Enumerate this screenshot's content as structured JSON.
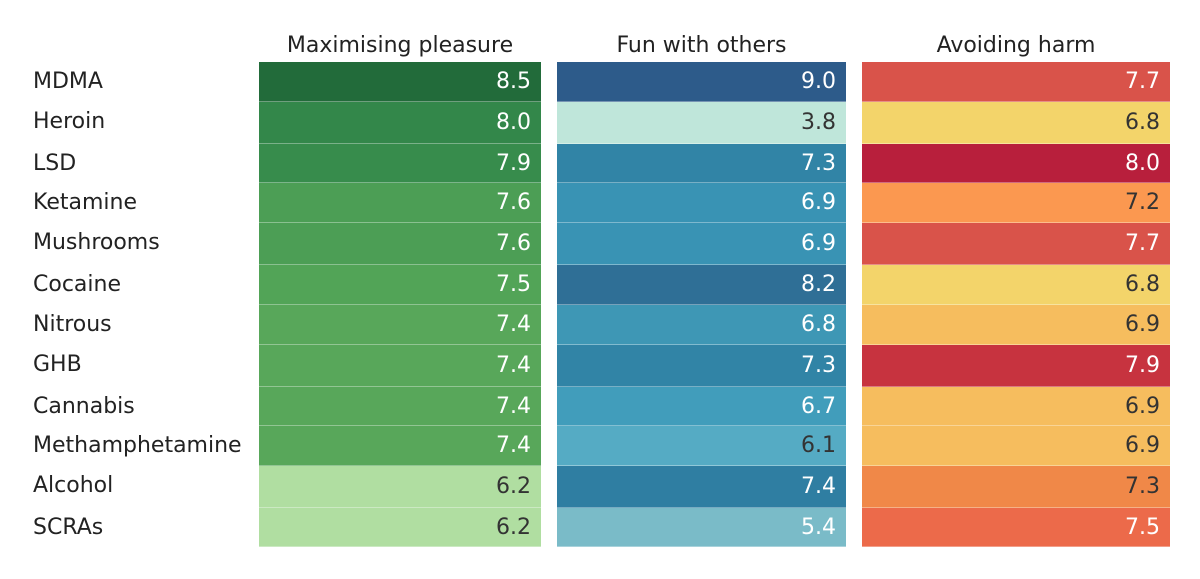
{
  "chart_data": {
    "type": "heatmap",
    "title": "",
    "columns": [
      "Maximising pleasure",
      "Fun with others",
      "Avoiding harm"
    ],
    "rows": [
      "MDMA",
      "Heroin",
      "LSD",
      "Ketamine",
      "Mushrooms",
      "Cocaine",
      "Nitrous",
      "GHB",
      "Cannabis",
      "Methamphetamine",
      "Alcohol",
      "SCRAs"
    ],
    "values": [
      [
        "8.5",
        "9.0",
        "7.7"
      ],
      [
        "8.0",
        "3.8",
        "6.8"
      ],
      [
        "7.9",
        "7.3",
        "8.0"
      ],
      [
        "7.6",
        "6.9",
        "7.2"
      ],
      [
        "7.6",
        "6.9",
        "7.7"
      ],
      [
        "7.5",
        "8.2",
        "6.8"
      ],
      [
        "7.4",
        "6.8",
        "6.9"
      ],
      [
        "7.4",
        "7.3",
        "7.9"
      ],
      [
        "7.4",
        "6.7",
        "6.9"
      ],
      [
        "7.4",
        "6.1",
        "6.9"
      ],
      [
        "6.2",
        "7.4",
        "7.3"
      ],
      [
        "6.2",
        "5.4",
        "7.5"
      ]
    ],
    "colors": [
      [
        "#226b3a",
        "#2d5b8a",
        "#d9534a"
      ],
      [
        "#33874a",
        "#bfe6da",
        "#f3d46a"
      ],
      [
        "#378c4c",
        "#3184a6",
        "#b81f3c"
      ],
      [
        "#4c9e55",
        "#3993b4",
        "#fb9850"
      ],
      [
        "#4c9e55",
        "#3993b4",
        "#d9534a"
      ],
      [
        "#52a457",
        "#2f6f96",
        "#f3d46a"
      ],
      [
        "#58a75a",
        "#3e97b5",
        "#f6bd5e"
      ],
      [
        "#58a75a",
        "#3184a6",
        "#c7333f"
      ],
      [
        "#58a75a",
        "#419dbb",
        "#f6bd5e"
      ],
      [
        "#58a75a",
        "#55abc4",
        "#f6bd5e"
      ],
      [
        "#b0dea1",
        "#2f7ea2",
        "#f08848"
      ],
      [
        "#b0dea1",
        "#7abbc8",
        "#ec6a4a"
      ]
    ],
    "text_colors": [
      [
        "#ffffff",
        "#ffffff",
        "#ffffff"
      ],
      [
        "#ffffff",
        "#333333",
        "#333333"
      ],
      [
        "#ffffff",
        "#ffffff",
        "#ffffff"
      ],
      [
        "#ffffff",
        "#ffffff",
        "#333333"
      ],
      [
        "#ffffff",
        "#ffffff",
        "#ffffff"
      ],
      [
        "#ffffff",
        "#ffffff",
        "#333333"
      ],
      [
        "#ffffff",
        "#ffffff",
        "#333333"
      ],
      [
        "#ffffff",
        "#ffffff",
        "#ffffff"
      ],
      [
        "#ffffff",
        "#ffffff",
        "#333333"
      ],
      [
        "#ffffff",
        "#333333",
        "#333333"
      ],
      [
        "#333333",
        "#ffffff",
        "#333333"
      ],
      [
        "#333333",
        "#ffffff",
        "#ffffff"
      ]
    ]
  }
}
